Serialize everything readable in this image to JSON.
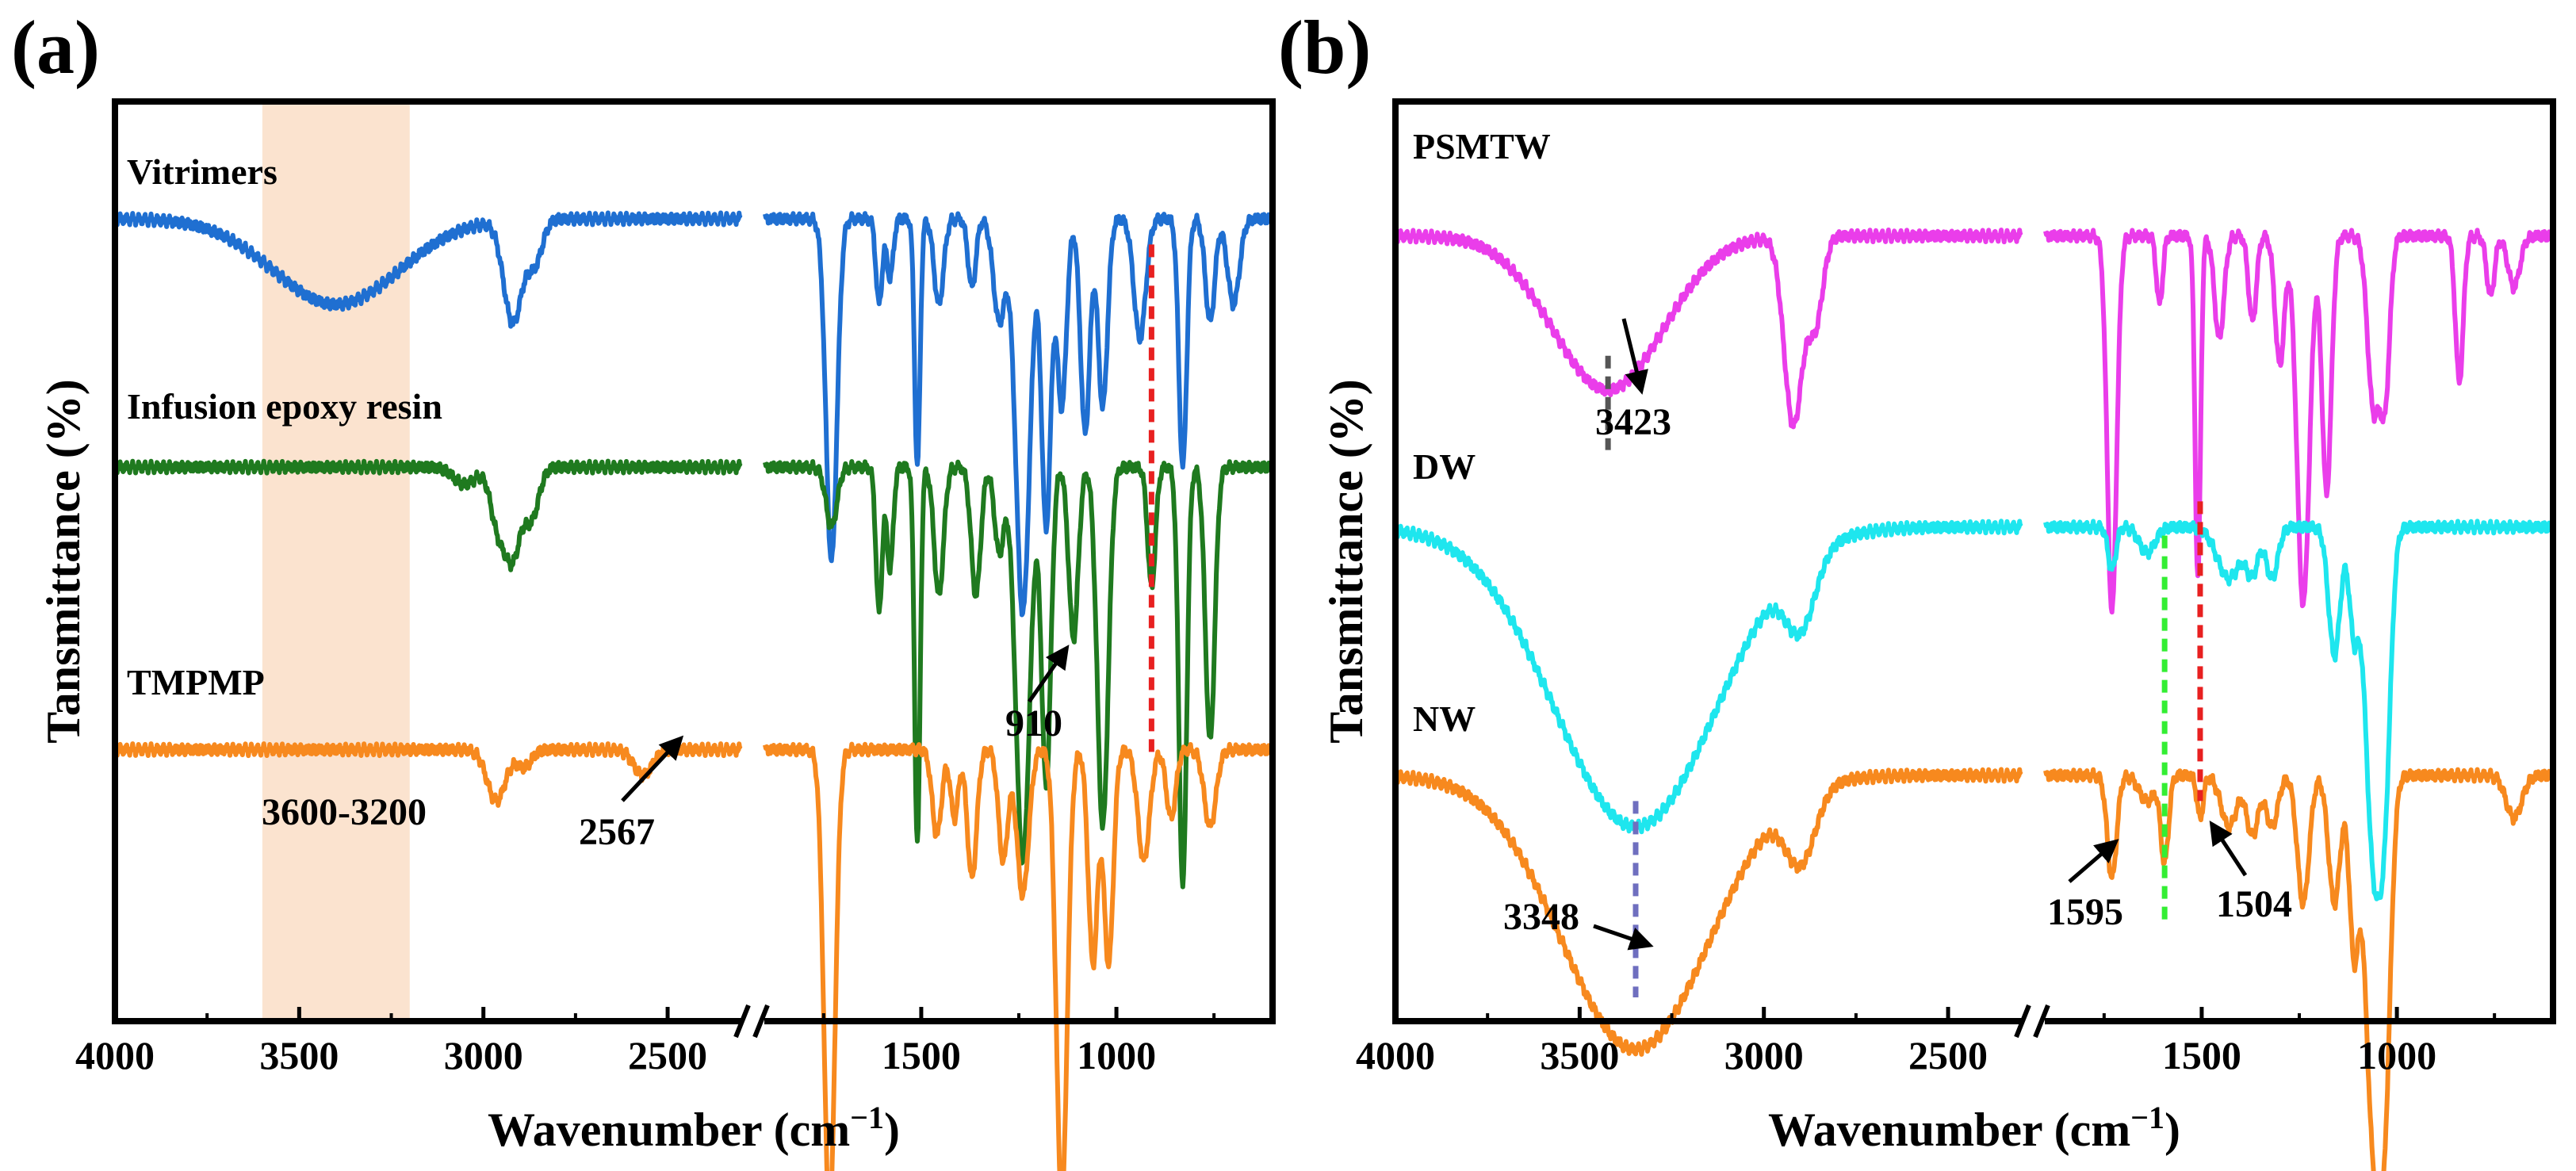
{
  "panels": {
    "a": {
      "label": "(a)"
    },
    "b": {
      "label": "(b)"
    }
  },
  "chart_data": [
    {
      "panel": "a",
      "type": "line",
      "title": "",
      "xlabel": "Wavenumber (cm",
      "xlabel_sup": "−1",
      "xlabel_close": ")",
      "ylabel": "Tansmittance (%)",
      "xlim": [
        4000,
        600
      ],
      "axis_break": [
        2300,
        1900
      ],
      "xticks": [
        4000,
        3500,
        3000,
        2500,
        1500,
        1000
      ],
      "xtick_labels": [
        "4000",
        "3500",
        "3000",
        "2500",
        "1500",
        "1000"
      ],
      "grid": false,
      "shaded_region": {
        "from": 3600,
        "to": 3200,
        "color": "#fbe3cf",
        "label": "3600-3200"
      },
      "series": [
        {
          "name": "Vitrimers",
          "color": "#1f6fd1",
          "baseline": 0.1,
          "peaks": [
            [
              3400,
              0.1,
              170
            ],
            [
              2920,
              0.12,
              25
            ],
            [
              2860,
              0.05,
              20
            ],
            [
              1730,
              0.4,
              14
            ],
            [
              1608,
              0.1,
              8
            ],
            [
              1580,
              0.07,
              8
            ],
            [
              1510,
              0.29,
              7
            ],
            [
              1455,
              0.1,
              12
            ],
            [
              1370,
              0.08,
              10
            ],
            [
              1300,
              0.12,
              15
            ],
            [
              1240,
              0.46,
              18
            ],
            [
              1180,
              0.36,
              12
            ],
            [
              1140,
              0.22,
              12
            ],
            [
              1080,
              0.25,
              12
            ],
            [
              1035,
              0.22,
              12
            ],
            [
              940,
              0.14,
              15
            ],
            [
              830,
              0.29,
              10
            ],
            [
              760,
              0.12,
              12
            ],
            [
              700,
              0.1,
              15
            ]
          ]
        },
        {
          "name": "Infusion epoxy resin",
          "color": "#1f7a1f",
          "baseline": 0.39,
          "peaks": [
            [
              3050,
              0.02,
              30
            ],
            [
              2960,
              0.07,
              20
            ],
            [
              2920,
              0.1,
              20
            ],
            [
              2870,
              0.06,
              20
            ],
            [
              1730,
              0.07,
              14
            ],
            [
              1608,
              0.17,
              8
            ],
            [
              1580,
              0.12,
              8
            ],
            [
              1510,
              0.44,
              7
            ],
            [
              1455,
              0.15,
              12
            ],
            [
              1360,
              0.15,
              12
            ],
            [
              1300,
              0.1,
              12
            ],
            [
              1240,
              0.46,
              18
            ],
            [
              1180,
              0.37,
              12
            ],
            [
              1110,
              0.2,
              12
            ],
            [
              1035,
              0.42,
              14
            ],
            [
              910,
              0.14,
              10
            ],
            [
              830,
              0.49,
              10
            ],
            [
              760,
              0.32,
              12
            ]
          ]
        },
        {
          "name": "TMPMP",
          "color": "#f7891e",
          "baseline": 0.72,
          "peaks": [
            [
              2965,
              0.06,
              25
            ],
            [
              2890,
              0.02,
              20
            ],
            [
              2567,
              0.03,
              25
            ],
            [
              1735,
              0.55,
              14
            ],
            [
              1460,
              0.1,
              12
            ],
            [
              1415,
              0.08,
              10
            ],
            [
              1370,
              0.15,
              12
            ],
            [
              1290,
              0.13,
              12
            ],
            [
              1240,
              0.17,
              15
            ],
            [
              1140,
              0.53,
              14
            ],
            [
              1060,
              0.25,
              12
            ],
            [
              1020,
              0.25,
              12
            ],
            [
              930,
              0.13,
              15
            ],
            [
              860,
              0.08,
              12
            ],
            [
              760,
              0.09,
              15
            ]
          ]
        }
      ],
      "annotations": [
        {
          "text": "910",
          "x": 910,
          "color": "#e82020",
          "style": "dashed"
        },
        {
          "text": "2567",
          "x": 2567
        },
        {
          "text": "3600-3200"
        }
      ]
    },
    {
      "panel": "b",
      "type": "line",
      "title": "",
      "xlabel": "Wavenumber (cm",
      "xlabel_sup": "−1",
      "xlabel_close": ")",
      "ylabel": "Tansmittance (%)",
      "xlim": [
        4000,
        600
      ],
      "axis_break": [
        2300,
        1900
      ],
      "xticks": [
        4000,
        3500,
        3000,
        2500,
        1500,
        1000
      ],
      "xtick_labels": [
        "4000",
        "3500",
        "3000",
        "2500",
        "1500",
        "1000"
      ],
      "grid": false,
      "series": [
        {
          "name": "PSMTW",
          "color": "#ea3dea",
          "baseline": 0.12,
          "peaks": [
            [
              3423,
              0.18,
              150
            ],
            [
              2920,
              0.22,
              25
            ],
            [
              2860,
              0.1,
              20
            ],
            [
              1730,
              0.44,
              12
            ],
            [
              1608,
              0.08,
              8
            ],
            [
              1510,
              0.4,
              7
            ],
            [
              1455,
              0.12,
              12
            ],
            [
              1370,
              0.1,
              10
            ],
            [
              1300,
              0.15,
              12
            ],
            [
              1240,
              0.43,
              16
            ],
            [
              1180,
              0.3,
              12
            ],
            [
              1060,
              0.2,
              15
            ],
            [
              1030,
              0.18,
              12
            ],
            [
              840,
              0.17,
              10
            ],
            [
              760,
              0.07,
              10
            ],
            [
              700,
              0.06,
              15
            ]
          ]
        },
        {
          "name": "DW",
          "color": "#1ee6ee",
          "baseline": 0.46,
          "peaks": [
            [
              3348,
              0.35,
              220
            ],
            [
              2900,
              0.08,
              40
            ],
            [
              1730,
              0.05,
              10
            ],
            [
              1640,
              0.03,
              20
            ],
            [
              1430,
              0.06,
              30
            ],
            [
              1370,
              0.05,
              15
            ],
            [
              1320,
              0.06,
              15
            ],
            [
              1160,
              0.15,
              15
            ],
            [
              1110,
              0.12,
              12
            ],
            [
              1060,
              0.38,
              20
            ],
            [
              1030,
              0.24,
              15
            ]
          ]
        },
        {
          "name": "NW",
          "color": "#f7891e",
          "baseline": 0.75,
          "peaks": [
            [
              3348,
              0.32,
              200
            ],
            [
              2900,
              0.08,
              40
            ],
            [
              1730,
              0.12,
              12
            ],
            [
              1640,
              0.03,
              20
            ],
            [
              1595,
              0.1,
              10
            ],
            [
              1504,
              0.05,
              8
            ],
            [
              1430,
              0.06,
              20
            ],
            [
              1370,
              0.07,
              15
            ],
            [
              1320,
              0.06,
              15
            ],
            [
              1240,
              0.15,
              15
            ],
            [
              1160,
              0.15,
              15
            ],
            [
              1110,
              0.2,
              12
            ],
            [
              1060,
              0.42,
              20
            ],
            [
              1030,
              0.3,
              15
            ],
            [
              700,
              0.05,
              20
            ]
          ]
        }
      ],
      "annotations": [
        {
          "text": "3423",
          "x": 3423,
          "color": "#555555",
          "style": "dashed"
        },
        {
          "text": "3348",
          "x": 3348,
          "color": "#6f6fbf",
          "style": "dashed"
        },
        {
          "text": "1595",
          "x": 1595,
          "color": "#33ee33",
          "style": "dashed"
        },
        {
          "text": "1504",
          "x": 1504,
          "color": "#e82020",
          "style": "dashed"
        }
      ]
    }
  ]
}
